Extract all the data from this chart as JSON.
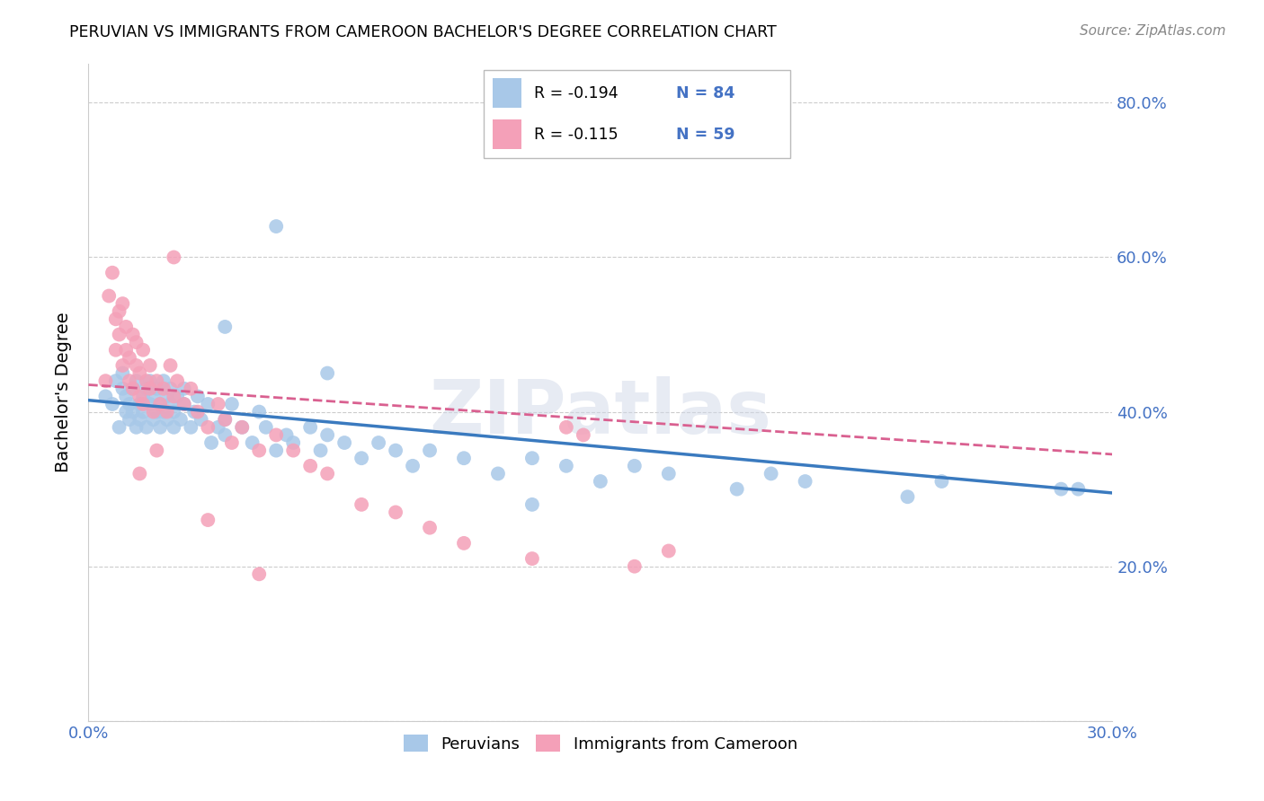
{
  "title": "PERUVIAN VS IMMIGRANTS FROM CAMEROON BACHELOR'S DEGREE CORRELATION CHART",
  "source": "Source: ZipAtlas.com",
  "ylabel": "Bachelor's Degree",
  "x_min": 0.0,
  "x_max": 0.3,
  "y_min": 0.0,
  "y_max": 0.85,
  "x_ticks": [
    0.0,
    0.05,
    0.1,
    0.15,
    0.2,
    0.25,
    0.3
  ],
  "x_tick_labels": [
    "0.0%",
    "",
    "",
    "",
    "",
    "",
    "30.0%"
  ],
  "y_ticks": [
    0.0,
    0.2,
    0.4,
    0.6,
    0.8
  ],
  "y_tick_labels_right": [
    "",
    "20.0%",
    "40.0%",
    "60.0%",
    "80.0%"
  ],
  "blue_color": "#a8c8e8",
  "pink_color": "#f4a0b8",
  "blue_line_color": "#3a7abf",
  "pink_line_color": "#d96090",
  "legend_r1": "R = -0.194",
  "legend_n1": "N = 84",
  "legend_r2": "R = -0.115",
  "legend_n2": "N = 59",
  "watermark": "ZIPatlas",
  "axis_color": "#4472c4",
  "grid_color": "#cccccc",
  "blue_scatter_x": [
    0.005,
    0.007,
    0.008,
    0.009,
    0.01,
    0.01,
    0.011,
    0.011,
    0.012,
    0.012,
    0.013,
    0.013,
    0.014,
    0.014,
    0.015,
    0.015,
    0.016,
    0.016,
    0.017,
    0.017,
    0.018,
    0.018,
    0.019,
    0.019,
    0.02,
    0.02,
    0.021,
    0.021,
    0.022,
    0.022,
    0.023,
    0.023,
    0.024,
    0.024,
    0.025,
    0.025,
    0.026,
    0.027,
    0.028,
    0.028,
    0.03,
    0.031,
    0.032,
    0.033,
    0.035,
    0.036,
    0.038,
    0.04,
    0.04,
    0.042,
    0.045,
    0.048,
    0.05,
    0.052,
    0.055,
    0.058,
    0.06,
    0.065,
    0.068,
    0.07,
    0.075,
    0.08,
    0.085,
    0.09,
    0.095,
    0.1,
    0.11,
    0.12,
    0.13,
    0.14,
    0.15,
    0.16,
    0.17,
    0.19,
    0.2,
    0.21,
    0.24,
    0.25,
    0.285,
    0.29,
    0.04,
    0.055,
    0.07,
    0.13
  ],
  "blue_scatter_y": [
    0.42,
    0.41,
    0.44,
    0.38,
    0.43,
    0.45,
    0.4,
    0.42,
    0.39,
    0.41,
    0.43,
    0.4,
    0.38,
    0.44,
    0.41,
    0.39,
    0.42,
    0.4,
    0.43,
    0.38,
    0.44,
    0.41,
    0.39,
    0.42,
    0.4,
    0.43,
    0.41,
    0.38,
    0.44,
    0.4,
    0.42,
    0.39,
    0.41,
    0.43,
    0.38,
    0.4,
    0.42,
    0.39,
    0.41,
    0.43,
    0.38,
    0.4,
    0.42,
    0.39,
    0.41,
    0.36,
    0.38,
    0.39,
    0.37,
    0.41,
    0.38,
    0.36,
    0.4,
    0.38,
    0.35,
    0.37,
    0.36,
    0.38,
    0.35,
    0.37,
    0.36,
    0.34,
    0.36,
    0.35,
    0.33,
    0.35,
    0.34,
    0.32,
    0.34,
    0.33,
    0.31,
    0.33,
    0.32,
    0.3,
    0.32,
    0.31,
    0.29,
    0.31,
    0.3,
    0.3,
    0.51,
    0.64,
    0.45,
    0.28
  ],
  "pink_scatter_x": [
    0.005,
    0.006,
    0.007,
    0.008,
    0.008,
    0.009,
    0.009,
    0.01,
    0.01,
    0.011,
    0.011,
    0.012,
    0.012,
    0.013,
    0.013,
    0.014,
    0.014,
    0.015,
    0.015,
    0.016,
    0.016,
    0.017,
    0.018,
    0.018,
    0.019,
    0.02,
    0.021,
    0.022,
    0.023,
    0.024,
    0.025,
    0.026,
    0.028,
    0.03,
    0.032,
    0.035,
    0.038,
    0.04,
    0.042,
    0.045,
    0.05,
    0.055,
    0.06,
    0.065,
    0.07,
    0.08,
    0.09,
    0.1,
    0.11,
    0.13,
    0.145,
    0.16,
    0.17,
    0.025,
    0.015,
    0.02,
    0.035,
    0.05,
    0.14
  ],
  "pink_scatter_y": [
    0.44,
    0.55,
    0.58,
    0.48,
    0.52,
    0.5,
    0.53,
    0.46,
    0.54,
    0.48,
    0.51,
    0.44,
    0.47,
    0.5,
    0.43,
    0.46,
    0.49,
    0.42,
    0.45,
    0.48,
    0.41,
    0.44,
    0.46,
    0.43,
    0.4,
    0.44,
    0.41,
    0.43,
    0.4,
    0.46,
    0.42,
    0.44,
    0.41,
    0.43,
    0.4,
    0.38,
    0.41,
    0.39,
    0.36,
    0.38,
    0.35,
    0.37,
    0.35,
    0.33,
    0.32,
    0.28,
    0.27,
    0.25,
    0.23,
    0.21,
    0.37,
    0.2,
    0.22,
    0.6,
    0.32,
    0.35,
    0.26,
    0.19,
    0.38
  ],
  "blue_trend_x": [
    0.0,
    0.3
  ],
  "blue_trend_y": [
    0.415,
    0.295
  ],
  "pink_trend_x": [
    0.0,
    0.3
  ],
  "pink_trend_y": [
    0.435,
    0.345
  ]
}
